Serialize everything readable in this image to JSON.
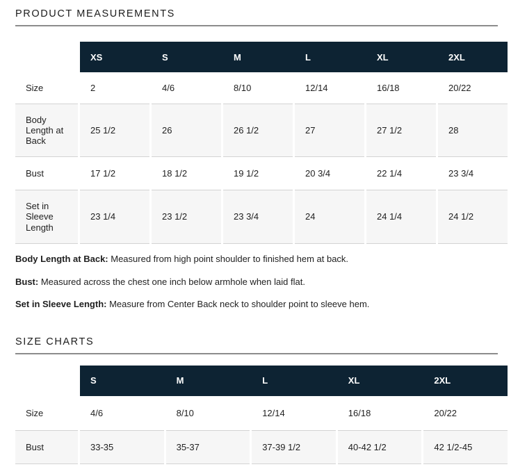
{
  "product_measurements": {
    "heading": "PRODUCT MEASUREMENTS",
    "table": {
      "columns": [
        "XS",
        "S",
        "M",
        "L",
        "XL",
        "2XL"
      ],
      "rows": [
        {
          "label": "Size",
          "values": [
            "2",
            "4/6",
            "8/10",
            "12/14",
            "16/18",
            "20/22"
          ]
        },
        {
          "label": "Body Length at Back",
          "values": [
            "25 1/2",
            "26",
            "26 1/2",
            "27",
            "27 1/2",
            "28"
          ]
        },
        {
          "label": "Bust",
          "values": [
            "17 1/2",
            "18 1/2",
            "19 1/2",
            "20 3/4",
            "22 1/4",
            "23 3/4"
          ]
        },
        {
          "label": "Set in Sleeve Length",
          "values": [
            "23 1/4",
            "23 1/2",
            "23 3/4",
            "24",
            "24 1/4",
            "24 1/2"
          ]
        }
      ]
    },
    "notes": [
      {
        "term": "Body Length at Back:",
        "definition": " Measured from high point shoulder to finished hem at back."
      },
      {
        "term": "Bust:",
        "definition": " Measured across the chest one inch below armhole when laid flat."
      },
      {
        "term": "Set in Sleeve Length:",
        "definition": " Measure from Center Back neck to shoulder point to sleeve hem."
      }
    ]
  },
  "size_charts": {
    "heading": "SIZE CHARTS",
    "table": {
      "columns": [
        "S",
        "M",
        "L",
        "XL",
        "2XL"
      ],
      "rows": [
        {
          "label": "Size",
          "values": [
            "4/6",
            "8/10",
            "12/14",
            "16/18",
            "20/22"
          ]
        },
        {
          "label": "Bust",
          "values": [
            "33-35",
            "35-37",
            "37-39 1/2",
            "40-42 1/2",
            "42 1/2-45"
          ]
        }
      ]
    }
  },
  "colors": {
    "table_header_bg": "#0d2333",
    "table_header_text": "#ffffff",
    "row_alt_bg": "#f6f6f6",
    "row_border": "#d3d3d3",
    "heading_rule": "#8c8c8c"
  }
}
